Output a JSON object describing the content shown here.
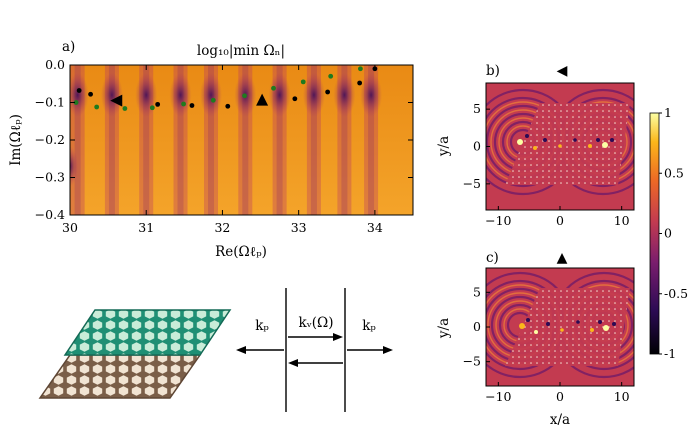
{
  "figure": {
    "panel_a": {
      "panel_label": "a)",
      "title": "log₁₀|min Ωₙ|",
      "xlabel": "Re(Ωℓₚ)",
      "ylabel": "Im(Ωℓₚ)"
    },
    "panel_b": {
      "panel_label": "b)",
      "marker": "◀",
      "ylabel": "y/a"
    },
    "panel_c": {
      "panel_label": "c)",
      "marker": "▲",
      "ylabel": "y/a",
      "xlabel": "x/a"
    },
    "colorbar": {
      "ticks": [
        "1",
        "0.5",
        "0",
        "-0.5",
        "-1"
      ]
    },
    "schematic": {
      "k_left": "kₚ",
      "k_middle": "kᵥ(Ω)",
      "k_right": "kₚ"
    },
    "colors": {
      "heat_bright": "#f5a623",
      "heat_dark": "#3d0a5c",
      "green_dots": "#1f7a1f",
      "lattice_top": "#1f8f74",
      "lattice_bottom": "#7a5e48"
    }
  },
  "chart_data": [
    {
      "type": "heatmap",
      "title": "log₁₀|min Ωₙ|",
      "xlabel": "Re(Ωℓₚ)",
      "ylabel": "Im(Ωℓₚ)",
      "xlim": [
        30,
        34.5
      ],
      "ylim": [
        -0.4,
        0.0
      ],
      "xticks": [
        "30",
        "31",
        "32",
        "33",
        "34"
      ],
      "yticks": [
        "0.0",
        "−0.1",
        "−0.2",
        "−0.3",
        "−0.4"
      ],
      "valleys_re": [
        30.1,
        30.55,
        31.0,
        31.45,
        31.85,
        32.3,
        32.75,
        33.2,
        33.6,
        33.95
      ],
      "series": [
        {
          "name": "black",
          "x": [
            30.12,
            30.27,
            31.15,
            31.6,
            32.07,
            32.52,
            32.95,
            33.38,
            33.8,
            34.0
          ],
          "y": [
            -0.068,
            -0.078,
            -0.105,
            -0.108,
            -0.11,
            -0.098,
            -0.09,
            -0.072,
            -0.048,
            -0.01
          ]
        },
        {
          "name": "green",
          "x": [
            30.08,
            30.35,
            30.72,
            31.08,
            31.49,
            31.88,
            32.29,
            32.67,
            33.06,
            33.42,
            33.81
          ],
          "y": [
            -0.1,
            -0.112,
            -0.116,
            -0.114,
            -0.104,
            -0.094,
            -0.082,
            -0.062,
            -0.045,
            -0.03,
            -0.01
          ]
        }
      ],
      "markers": [
        {
          "name": "left-triangle",
          "x": 30.62,
          "y": -0.095
        },
        {
          "name": "up-triangle",
          "x": 32.52,
          "y": -0.095
        }
      ]
    },
    {
      "type": "heatmap",
      "panel": "b",
      "ylabel": "y/a",
      "xlim": [
        -12,
        12
      ],
      "ylim": [
        -8.5,
        8.5
      ],
      "xticks": [
        "−10",
        "0",
        "10"
      ],
      "yticks": [
        "5",
        "0",
        "−5"
      ],
      "colorbar_range": [
        -1,
        1
      ]
    },
    {
      "type": "heatmap",
      "panel": "c",
      "xlabel": "x/a",
      "ylabel": "y/a",
      "xlim": [
        -12,
        12
      ],
      "ylim": [
        -8.5,
        8.5
      ],
      "xticks": [
        "−10",
        "0",
        "10"
      ],
      "yticks": [
        "5",
        "0",
        "−5"
      ],
      "colorbar_range": [
        -1,
        1
      ]
    }
  ]
}
